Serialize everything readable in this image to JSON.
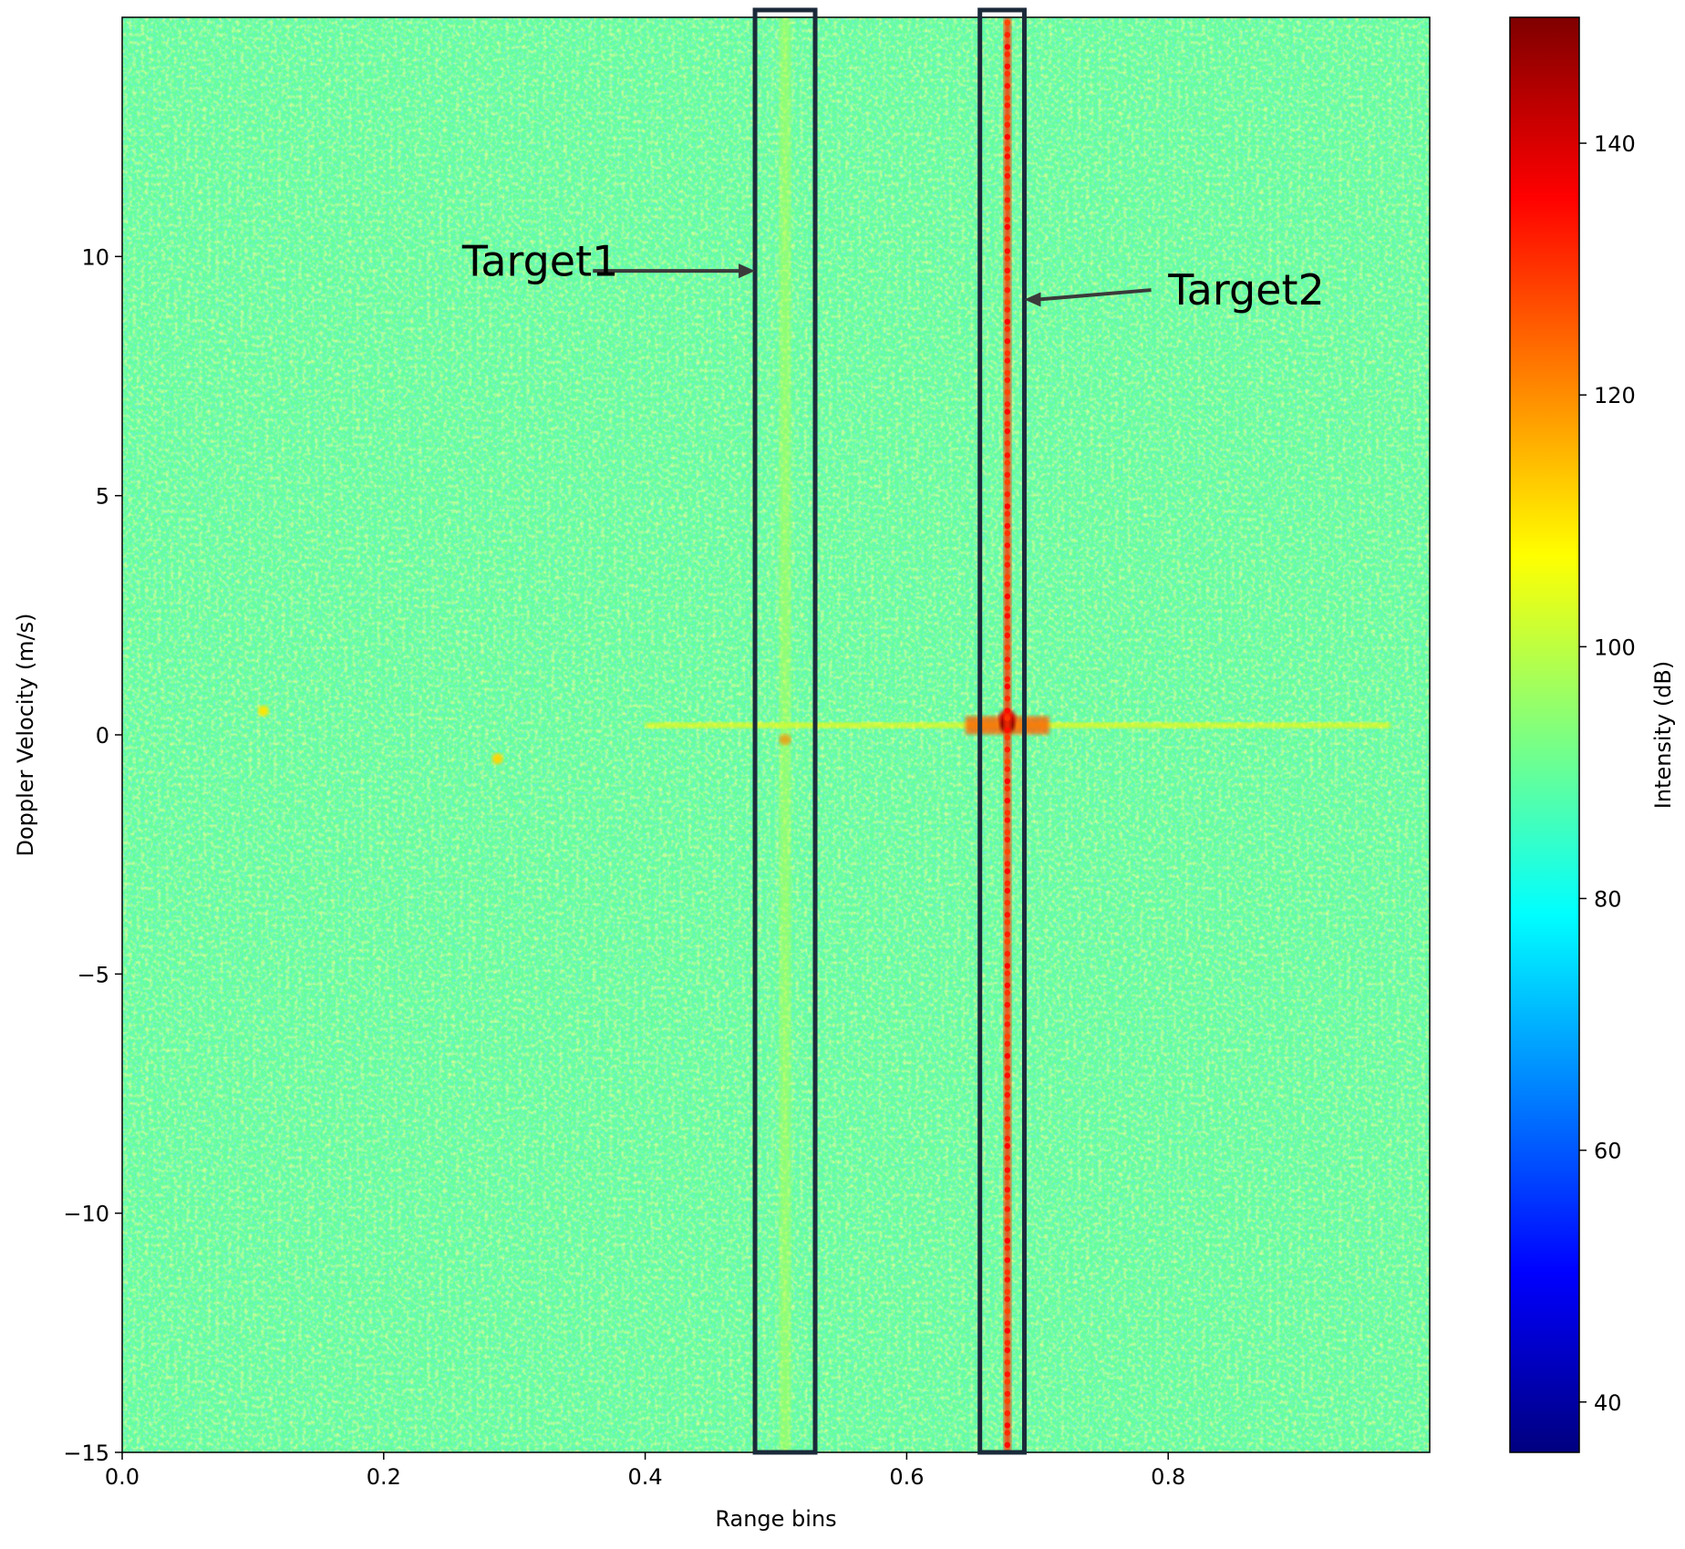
{
  "chart_data": {
    "type": "heatmap",
    "title": "",
    "xlabel": "Range bins",
    "ylabel": "Doppler Velocity (m/s)",
    "xlim": [
      0.0,
      1.0
    ],
    "ylim": [
      -15,
      15
    ],
    "x_ticks": [
      0.0,
      0.2,
      0.4,
      0.6,
      0.8
    ],
    "x_tick_labels": [
      "0.0",
      "0.2",
      "0.4",
      "0.6",
      "0.8"
    ],
    "y_ticks": [
      -15,
      -10,
      -5,
      0,
      5,
      10
    ],
    "y_tick_labels": [
      "−15",
      "−10",
      "−5",
      "0",
      "5",
      "10"
    ],
    "colormap": "jet",
    "colorbar": {
      "label": "Intensity (dB)",
      "range": [
        36,
        150
      ],
      "ticks": [
        40,
        60,
        80,
        100,
        120,
        140
      ],
      "tick_labels": [
        "40",
        "60",
        "80",
        "100",
        "120",
        "140"
      ]
    },
    "grid": false,
    "noise_floor_db": 90,
    "features": [
      {
        "kind": "horizontal-line",
        "doppler": 0.2,
        "x_from": 0.4,
        "x_to": 0.97,
        "db": 108
      },
      {
        "kind": "peak",
        "range": 0.507,
        "doppler": -0.1,
        "db": 125
      },
      {
        "kind": "peak",
        "range": 0.677,
        "doppler": 0.2,
        "db": 150
      },
      {
        "kind": "peak",
        "range": 0.287,
        "doppler": -0.5,
        "db": 112
      },
      {
        "kind": "peak",
        "range": 0.108,
        "doppler": 0.5,
        "db": 110
      },
      {
        "kind": "vertical-line",
        "range": 0.677,
        "db": 130
      },
      {
        "kind": "vertical-line",
        "range": 0.507,
        "db": 100
      }
    ],
    "annotations": [
      {
        "text": "Target1",
        "box_x": [
          0.484,
          0.53
        ],
        "box_y": [
          -15,
          15
        ],
        "arrow_to": {
          "x": 0.484,
          "y": 9.7
        },
        "arrow_from": {
          "x": 0.36,
          "y": 9.7
        },
        "label_at": {
          "x": 0.26,
          "y": 9.9
        }
      },
      {
        "text": "Target2",
        "box_x": [
          0.656,
          0.69
        ],
        "box_y": [
          -15,
          15
        ],
        "arrow_to": {
          "x": 0.69,
          "y": 9.1
        },
        "arrow_from": {
          "x": 0.787,
          "y": 9.3
        },
        "label_at": {
          "x": 0.8,
          "y": 9.3
        }
      }
    ]
  }
}
